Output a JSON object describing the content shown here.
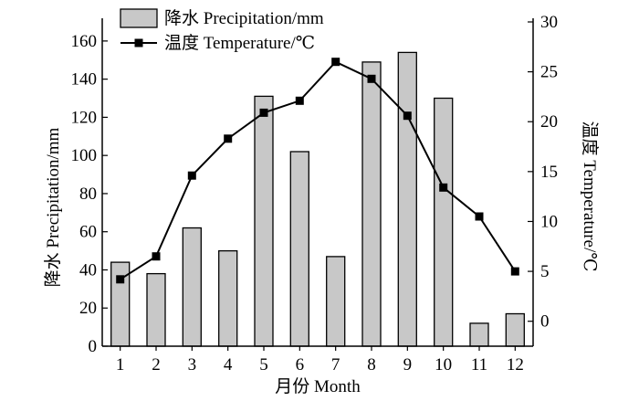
{
  "chart_data": {
    "type": "bar",
    "categories": [
      "1",
      "2",
      "3",
      "4",
      "5",
      "6",
      "7",
      "8",
      "9",
      "10",
      "11",
      "12"
    ],
    "series": [
      {
        "name": "降水 Precipitation/mm",
        "type": "bar",
        "axis": "left",
        "values": [
          44,
          38,
          62,
          50,
          131,
          102,
          47,
          149,
          154,
          130,
          12,
          17
        ]
      },
      {
        "name": "温度 Temperature/℃",
        "type": "line",
        "axis": "right",
        "values": [
          4.2,
          6.5,
          14.6,
          18.3,
          20.9,
          22.1,
          26.0,
          24.3,
          20.6,
          13.4,
          10.5,
          5.0
        ]
      }
    ],
    "xlabel": "月份 Month",
    "ylabel": "降水 Precipitation/mm",
    "y2label": "温度 Temperature/℃",
    "ylim": [
      0,
      170
    ],
    "y2lim": [
      -2.5,
      30
    ],
    "yticks": [
      0,
      20,
      40,
      60,
      80,
      100,
      120,
      140,
      160
    ],
    "y2ticks": [
      0,
      5,
      10,
      15,
      20,
      25,
      30
    ],
    "legend_position": "top-left",
    "grid": false,
    "colors": {
      "bar_fill": "#c8c8c8",
      "line": "#000000"
    }
  }
}
